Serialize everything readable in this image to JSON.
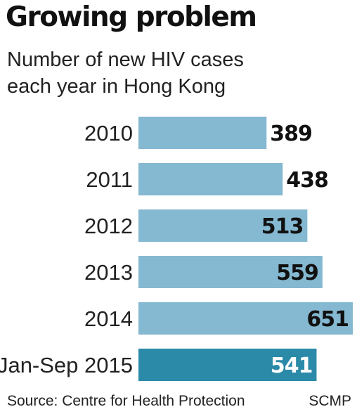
{
  "title": "Growing problem",
  "subtitle": "Number of new HIV cases each year in Hong Kong",
  "source": "Source: Centre for Health Protection",
  "credit": "SCMP",
  "colors": {
    "bar": "#85b8d1",
    "highlight": "#2b8aa8",
    "label_dark": "#111111",
    "label_light": "#ffffff"
  },
  "chart_data": {
    "type": "bar",
    "orientation": "horizontal",
    "categories": [
      "2010",
      "2011",
      "2012",
      "2013",
      "2014",
      "Jan-Sep 2015"
    ],
    "values": [
      389,
      438,
      513,
      559,
      651,
      541
    ],
    "highlight_index": 5,
    "title": "Growing problem",
    "subtitle": "Number of new HIV cases each year in Hong Kong",
    "xlim": [
      0,
      651
    ]
  }
}
